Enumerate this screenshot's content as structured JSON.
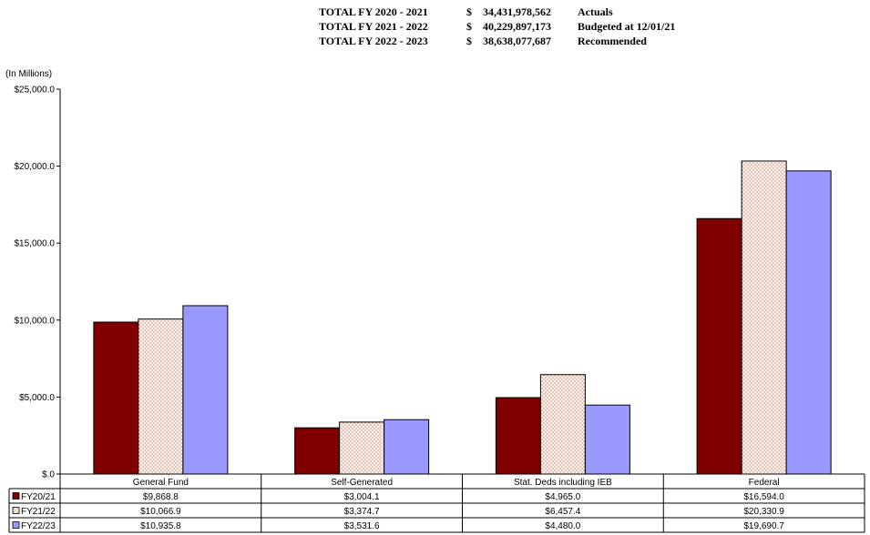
{
  "totals": [
    {
      "label": "TOTAL FY 2020 - 2021",
      "currency": "$",
      "amount": "34,431,978,562",
      "note": "Actuals"
    },
    {
      "label": "TOTAL FY 2021 - 2022",
      "currency": "$",
      "amount": "40,229,897,173",
      "note": "Budgeted at 12/01/21"
    },
    {
      "label": "TOTAL FY 2022 - 2023",
      "currency": "$",
      "amount": "38,638,077,687",
      "note": "Recommended"
    }
  ],
  "chart_data": {
    "type": "bar",
    "title": "",
    "ylabel": "(In Millions)",
    "xlabel": "",
    "ylim": [
      0,
      25000
    ],
    "yticks": [
      0,
      5000,
      10000,
      15000,
      20000,
      25000
    ],
    "ytick_labels": [
      "$.0",
      "$5,000.0",
      "$10,000.0",
      "$15,000.0",
      "$20,000.0",
      "$25,000.0"
    ],
    "grid": false,
    "legend": "data-table-left",
    "categories": [
      "General Fund",
      "Self-Generated",
      "Stat. Deds including IEB",
      "Federal"
    ],
    "series": [
      {
        "name": "FY20/21",
        "color": "#800000",
        "pattern": "solid",
        "values": [
          9868.8,
          3004.1,
          4965.0,
          16594.0
        ],
        "labels": [
          "$9,868.8",
          "$3,004.1",
          "$4,965.0",
          "$16,594.0"
        ]
      },
      {
        "name": "FY21/22",
        "color": "#fff2e8",
        "pattern": "dots",
        "values": [
          10066.9,
          3374.7,
          6457.4,
          20330.9
        ],
        "labels": [
          "$10,066.9",
          "$3,374.7",
          "$6,457.4",
          "$20,330.9"
        ]
      },
      {
        "name": "FY22/23",
        "color": "#9999ff",
        "pattern": "solid",
        "values": [
          10935.8,
          3531.6,
          4480.0,
          19690.7
        ],
        "labels": [
          "$10,935.8",
          "$3,531.6",
          "$4,480.0",
          "$19,690.7"
        ]
      }
    ]
  }
}
